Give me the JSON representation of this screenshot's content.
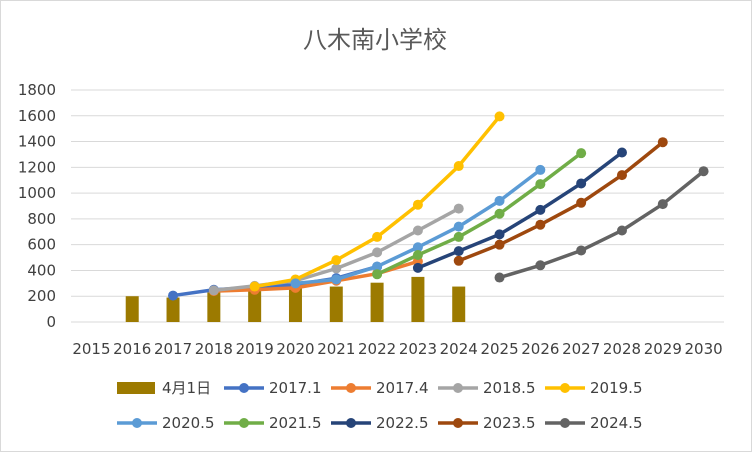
{
  "chart_data": {
    "type": "bar+line",
    "title": "八木南小学校",
    "xlabel": "",
    "ylabel": "",
    "ylim": [
      0,
      1800
    ],
    "yticks": [
      0,
      200,
      400,
      600,
      800,
      1000,
      1200,
      1400,
      1600,
      1800
    ],
    "categories": [
      "2015",
      "2016",
      "2017",
      "2018",
      "2019",
      "2020",
      "2021",
      "2022",
      "2023",
      "2024",
      "2025",
      "2026",
      "2027",
      "2028",
      "2029",
      "2030"
    ],
    "grid": "horizontal",
    "legend_position": "bottom",
    "bar_series": {
      "name": "4月1日",
      "color": "#9C7A00",
      "values": [
        null,
        200,
        190,
        230,
        240,
        265,
        275,
        305,
        350,
        275,
        null,
        null,
        null,
        null,
        null,
        null
      ]
    },
    "line_series": [
      {
        "name": "2017.1",
        "color": "#4472C4",
        "values": [
          null,
          null,
          205,
          250,
          270,
          290,
          340,
          430,
          null,
          null,
          null,
          null,
          null,
          null,
          null,
          null
        ]
      },
      {
        "name": "2017.4",
        "color": "#ED7D31",
        "values": [
          null,
          null,
          null,
          240,
          250,
          265,
          320,
          375,
          470,
          null,
          null,
          null,
          null,
          null,
          null,
          null
        ]
      },
      {
        "name": "2018.5",
        "color": "#A5A5A5",
        "values": [
          null,
          null,
          null,
          245,
          280,
          320,
          415,
          540,
          710,
          880,
          null,
          null,
          null,
          null,
          null,
          null
        ]
      },
      {
        "name": "2019.5",
        "color": "#FFC000",
        "values": [
          null,
          null,
          null,
          null,
          275,
          330,
          480,
          660,
          910,
          1210,
          1595,
          null,
          null,
          null,
          null,
          null
        ]
      },
      {
        "name": "2020.5",
        "color": "#5B9BD5",
        "values": [
          null,
          null,
          null,
          null,
          null,
          300,
          330,
          430,
          580,
          740,
          940,
          1180,
          null,
          null,
          null,
          null
        ]
      },
      {
        "name": "2021.5",
        "color": "#70AD47",
        "values": [
          null,
          null,
          null,
          null,
          null,
          null,
          null,
          370,
          520,
          660,
          840,
          1070,
          1310,
          null,
          null,
          null
        ]
      },
      {
        "name": "2022.5",
        "color": "#264478",
        "values": [
          null,
          null,
          null,
          null,
          null,
          null,
          null,
          null,
          420,
          550,
          680,
          870,
          1075,
          1315,
          null,
          null
        ]
      },
      {
        "name": "2023.5",
        "color": "#9E480E",
        "values": [
          null,
          null,
          null,
          null,
          null,
          null,
          null,
          null,
          null,
          475,
          600,
          755,
          925,
          1140,
          1395,
          null
        ]
      },
      {
        "name": "2024.5",
        "color": "#636363",
        "values": [
          null,
          null,
          null,
          null,
          null,
          null,
          null,
          null,
          null,
          null,
          345,
          440,
          555,
          710,
          915,
          1170
        ]
      }
    ]
  }
}
